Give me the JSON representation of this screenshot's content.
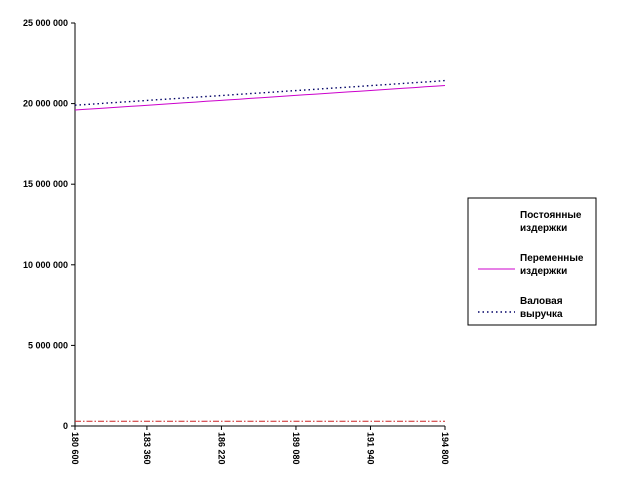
{
  "chart_data": {
    "type": "line",
    "title": "",
    "xlabel": "",
    "ylabel": "",
    "x": [
      180600,
      181020,
      181440,
      181860,
      182280,
      182700,
      183120,
      183540,
      183960,
      184380,
      184800,
      185220,
      185640,
      186060,
      186480,
      186900,
      187320,
      187740,
      188160,
      188580,
      189000,
      189420,
      189840,
      190260,
      190680,
      191100,
      191520,
      191940,
      192360,
      192780,
      193200,
      193620,
      194040,
      194460,
      194800
    ],
    "x_tick_labels": [
      "180 600",
      "183 360",
      "186 220",
      "189 080",
      "191 940",
      "194 800"
    ],
    "x_tick_values": [
      180600,
      183360,
      186220,
      189080,
      191940,
      194800
    ],
    "ylim": [
      0,
      25000000
    ],
    "y_tick_labels": [
      "0",
      "5 000 000",
      "10 000 000",
      "15 000 000",
      "20 000 000",
      "25 000 000"
    ],
    "y_tick_values": [
      0,
      5000000,
      10000000,
      15000000,
      20000000,
      25000000
    ],
    "grid": false,
    "legend_position": "right",
    "series": [
      {
        "name": "Постоянные издержки",
        "color": "#cc2222",
        "style": "dash-dot",
        "values": [
          300000,
          300000,
          300000,
          300000,
          300000,
          300000,
          300000,
          300000,
          300000,
          300000,
          300000,
          300000,
          300000,
          300000,
          300000,
          300000,
          300000,
          300000,
          300000,
          300000,
          300000,
          300000,
          300000,
          300000,
          300000,
          300000,
          300000,
          300000,
          300000,
          300000,
          300000,
          300000,
          300000,
          300000,
          300000
        ]
      },
      {
        "name": "Переменные издержки",
        "color": "#cc00cc",
        "style": "solid",
        "values": [
          19600000,
          19645000,
          19690000,
          19735000,
          19780000,
          19825000,
          19870000,
          19915000,
          19960000,
          20005000,
          20050000,
          20095000,
          20140000,
          20185000,
          20230000,
          20275000,
          20320000,
          20365000,
          20410000,
          20455000,
          20500000,
          20545000,
          20590000,
          20635000,
          20680000,
          20725000,
          20770000,
          20815000,
          20860000,
          20905000,
          20950000,
          20995000,
          21040000,
          21085000,
          21120000
        ]
      },
      {
        "name": "Валовая выручка",
        "color": "#000066",
        "style": "dotted",
        "values": [
          19900000,
          19945000,
          19990000,
          20035000,
          20080000,
          20125000,
          20170000,
          20215000,
          20260000,
          20305000,
          20350000,
          20395000,
          20440000,
          20485000,
          20530000,
          20575000,
          20620000,
          20665000,
          20710000,
          20755000,
          20800000,
          20845000,
          20890000,
          20935000,
          20980000,
          21025000,
          21070000,
          21115000,
          21160000,
          21205000,
          21250000,
          21295000,
          21340000,
          21385000,
          21430000
        ]
      }
    ],
    "legend_lines": [
      [
        "Постоянные",
        "издержки"
      ],
      [
        "Переменные",
        "издержки"
      ],
      [
        "Валовая",
        "выручка"
      ]
    ]
  }
}
